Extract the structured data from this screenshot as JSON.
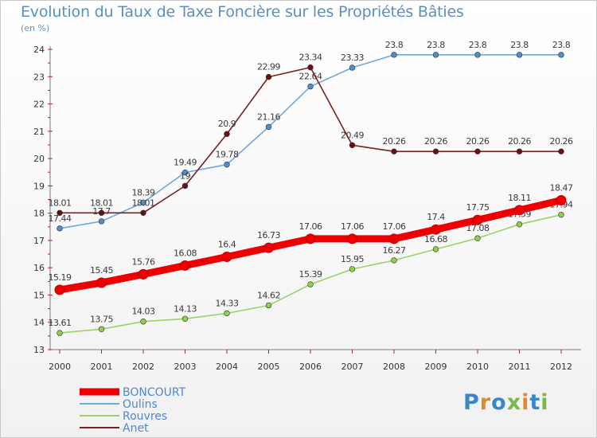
{
  "header": {
    "title": "Evolution du Taux de Taxe Foncière sur les Propriétés Bâties",
    "subtitle": "(en %)"
  },
  "logo": {
    "text": "Proxiti",
    "colors": [
      "#3a86c9",
      "#e0892a",
      "#3a86c9",
      "#79b94b",
      "#e0892a",
      "#3a86c9",
      "#79b94b"
    ]
  },
  "chart_data": {
    "type": "line",
    "title": "Evolution du Taux de Taxe Foncière sur les Propriétés Bâties",
    "subtitle": "(en %)",
    "xlabel": "",
    "ylabel": "",
    "x": [
      "2000",
      "2001",
      "2002",
      "2003",
      "2004",
      "2005",
      "2006",
      "2007",
      "2008",
      "2009",
      "2010",
      "2011",
      "2012"
    ],
    "ylim": [
      13,
      24
    ],
    "yticks": [
      13,
      14,
      15,
      16,
      17,
      18,
      19,
      20,
      21,
      22,
      23,
      24
    ],
    "grid": false,
    "legend_position": "bottom-left",
    "series": [
      {
        "name": "BONCOURT",
        "color": "#ee0000",
        "values": [
          15.19,
          15.45,
          15.76,
          16.08,
          16.4,
          16.73,
          17.06,
          17.06,
          17.06,
          17.4,
          17.75,
          18.11,
          18.47
        ],
        "labels": [
          "15.19",
          "15.45",
          "15.76",
          "16.08",
          "16.4",
          "16.73",
          "17.06",
          "17.06",
          "17.06",
          "17.4",
          "17.75",
          "18.11",
          "18.47"
        ]
      },
      {
        "name": "Oulins",
        "color": "#6fa8dc",
        "values": [
          17.44,
          17.7,
          18.39,
          19.49,
          19.78,
          21.16,
          22.64,
          23.33,
          23.8,
          23.8,
          23.8,
          23.8,
          23.8
        ],
        "labels": [
          "17.44",
          "17.7",
          "18.39",
          "19.49",
          "19.78",
          "21.16",
          "22.64",
          "23.33",
          "23.8",
          "23.8",
          "23.8",
          "23.8",
          "23.8"
        ]
      },
      {
        "name": "Rouvres",
        "color": "#9fd06b",
        "values": [
          13.61,
          13.75,
          14.03,
          14.13,
          14.33,
          14.62,
          15.39,
          15.95,
          16.27,
          16.68,
          17.08,
          17.59,
          17.94
        ],
        "labels": [
          "13.61",
          "13.75",
          "14.03",
          "14.13",
          "14.33",
          "14.62",
          "15.39",
          "15.95",
          "16.27",
          "16.68",
          "17.08",
          "17.59",
          "17.94"
        ]
      },
      {
        "name": "Anet",
        "color": "#7a2020",
        "values": [
          18.01,
          18.01,
          18.01,
          19,
          20.9,
          22.99,
          23.34,
          20.49,
          20.26,
          20.26,
          20.26,
          20.26,
          20.26
        ],
        "labels": [
          "18.01",
          "18.01",
          "18.01",
          "19",
          "20.9",
          "22.99",
          "23.34",
          "20.49",
          "20.26",
          "20.26",
          "20.26",
          "20.26",
          "20.26"
        ]
      }
    ]
  }
}
